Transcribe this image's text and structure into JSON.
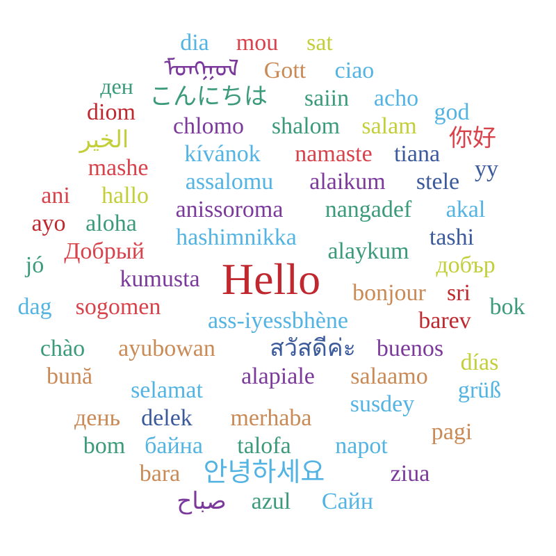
{
  "palette": {
    "red": "#c0282f",
    "crimson": "#d8424a",
    "skyblue": "#53b4e3",
    "lime": "#c3cf3a",
    "purple": "#7b3a9b",
    "tan": "#c98a56",
    "teal": "#3a9a7a",
    "navy": "#3b5a9b"
  },
  "words": [
    {
      "text": "dia",
      "color": "skyblue"
    },
    {
      "text": "mou",
      "color": "crimson"
    },
    {
      "text": "sat",
      "color": "lime"
    },
    {
      "text": "ᠮᠣᠩᠭᠣᠯ",
      "color": "purple"
    },
    {
      "text": "Gott",
      "color": "tan"
    },
    {
      "text": "ciao",
      "color": "skyblue"
    },
    {
      "text": "ден",
      "color": "teal"
    },
    {
      "text": "こんにちは",
      "color": "teal"
    },
    {
      "text": "saiin",
      "color": "teal"
    },
    {
      "text": "acho",
      "color": "skyblue"
    },
    {
      "text": "diom",
      "color": "red"
    },
    {
      "text": "god",
      "color": "skyblue"
    },
    {
      "text": "chlomo",
      "color": "purple"
    },
    {
      "text": "shalom",
      "color": "teal"
    },
    {
      "text": "salam",
      "color": "lime"
    },
    {
      "text": "你好",
      "color": "crimson"
    },
    {
      "text": "الخير",
      "color": "lime"
    },
    {
      "text": "kívánok",
      "color": "skyblue"
    },
    {
      "text": "namaste",
      "color": "crimson"
    },
    {
      "text": "tiana",
      "color": "navy"
    },
    {
      "text": "mashe",
      "color": "crimson"
    },
    {
      "text": "уу",
      "color": "navy"
    },
    {
      "text": "ani",
      "color": "crimson"
    },
    {
      "text": "hallo",
      "color": "lime"
    },
    {
      "text": "assalomu",
      "color": "skyblue"
    },
    {
      "text": "alaikum",
      "color": "purple"
    },
    {
      "text": "stele",
      "color": "navy"
    },
    {
      "text": "anissoroma",
      "color": "purple"
    },
    {
      "text": "nangadef",
      "color": "teal"
    },
    {
      "text": "akal",
      "color": "skyblue"
    },
    {
      "text": "ayo",
      "color": "red"
    },
    {
      "text": "aloha",
      "color": "teal"
    },
    {
      "text": "hashimnikka",
      "color": "skyblue"
    },
    {
      "text": "tashi",
      "color": "navy"
    },
    {
      "text": "Добрый",
      "color": "crimson"
    },
    {
      "text": "alaykum",
      "color": "teal"
    },
    {
      "text": "jó",
      "color": "teal"
    },
    {
      "text": "добър",
      "color": "lime"
    },
    {
      "text": "Hello",
      "color": "red"
    },
    {
      "text": "kumusta",
      "color": "purple"
    },
    {
      "text": "bonjour",
      "color": "tan"
    },
    {
      "text": "sri",
      "color": "red"
    },
    {
      "text": "dag",
      "color": "skyblue"
    },
    {
      "text": "sogomen",
      "color": "crimson"
    },
    {
      "text": "bok",
      "color": "teal"
    },
    {
      "text": "ass-iyessbhène",
      "color": "skyblue"
    },
    {
      "text": "barev",
      "color": "red"
    },
    {
      "text": "chào",
      "color": "teal"
    },
    {
      "text": "ayubowan",
      "color": "tan"
    },
    {
      "text": "สวัสดีค่ะ",
      "color": "navy"
    },
    {
      "text": "buenos",
      "color": "purple"
    },
    {
      "text": "días",
      "color": "lime"
    },
    {
      "text": "bună",
      "color": "tan"
    },
    {
      "text": "alapiale",
      "color": "purple"
    },
    {
      "text": "salaamo",
      "color": "tan"
    },
    {
      "text": "selamat",
      "color": "skyblue"
    },
    {
      "text": "grüß",
      "color": "skyblue"
    },
    {
      "text": "susdey",
      "color": "skyblue"
    },
    {
      "text": "день",
      "color": "tan"
    },
    {
      "text": "delek",
      "color": "navy"
    },
    {
      "text": "merhaba",
      "color": "tan"
    },
    {
      "text": "pagi",
      "color": "tan"
    },
    {
      "text": "bom",
      "color": "teal"
    },
    {
      "text": "байна",
      "color": "skyblue"
    },
    {
      "text": "talofa",
      "color": "teal"
    },
    {
      "text": "napot",
      "color": "skyblue"
    },
    {
      "text": "bara",
      "color": "tan"
    },
    {
      "text": "안녕하세요",
      "color": "skyblue"
    },
    {
      "text": "ziua",
      "color": "purple"
    },
    {
      "text": "صباح",
      "color": "purple"
    },
    {
      "text": "azul",
      "color": "teal"
    },
    {
      "text": "Сайн",
      "color": "skyblue"
    }
  ]
}
